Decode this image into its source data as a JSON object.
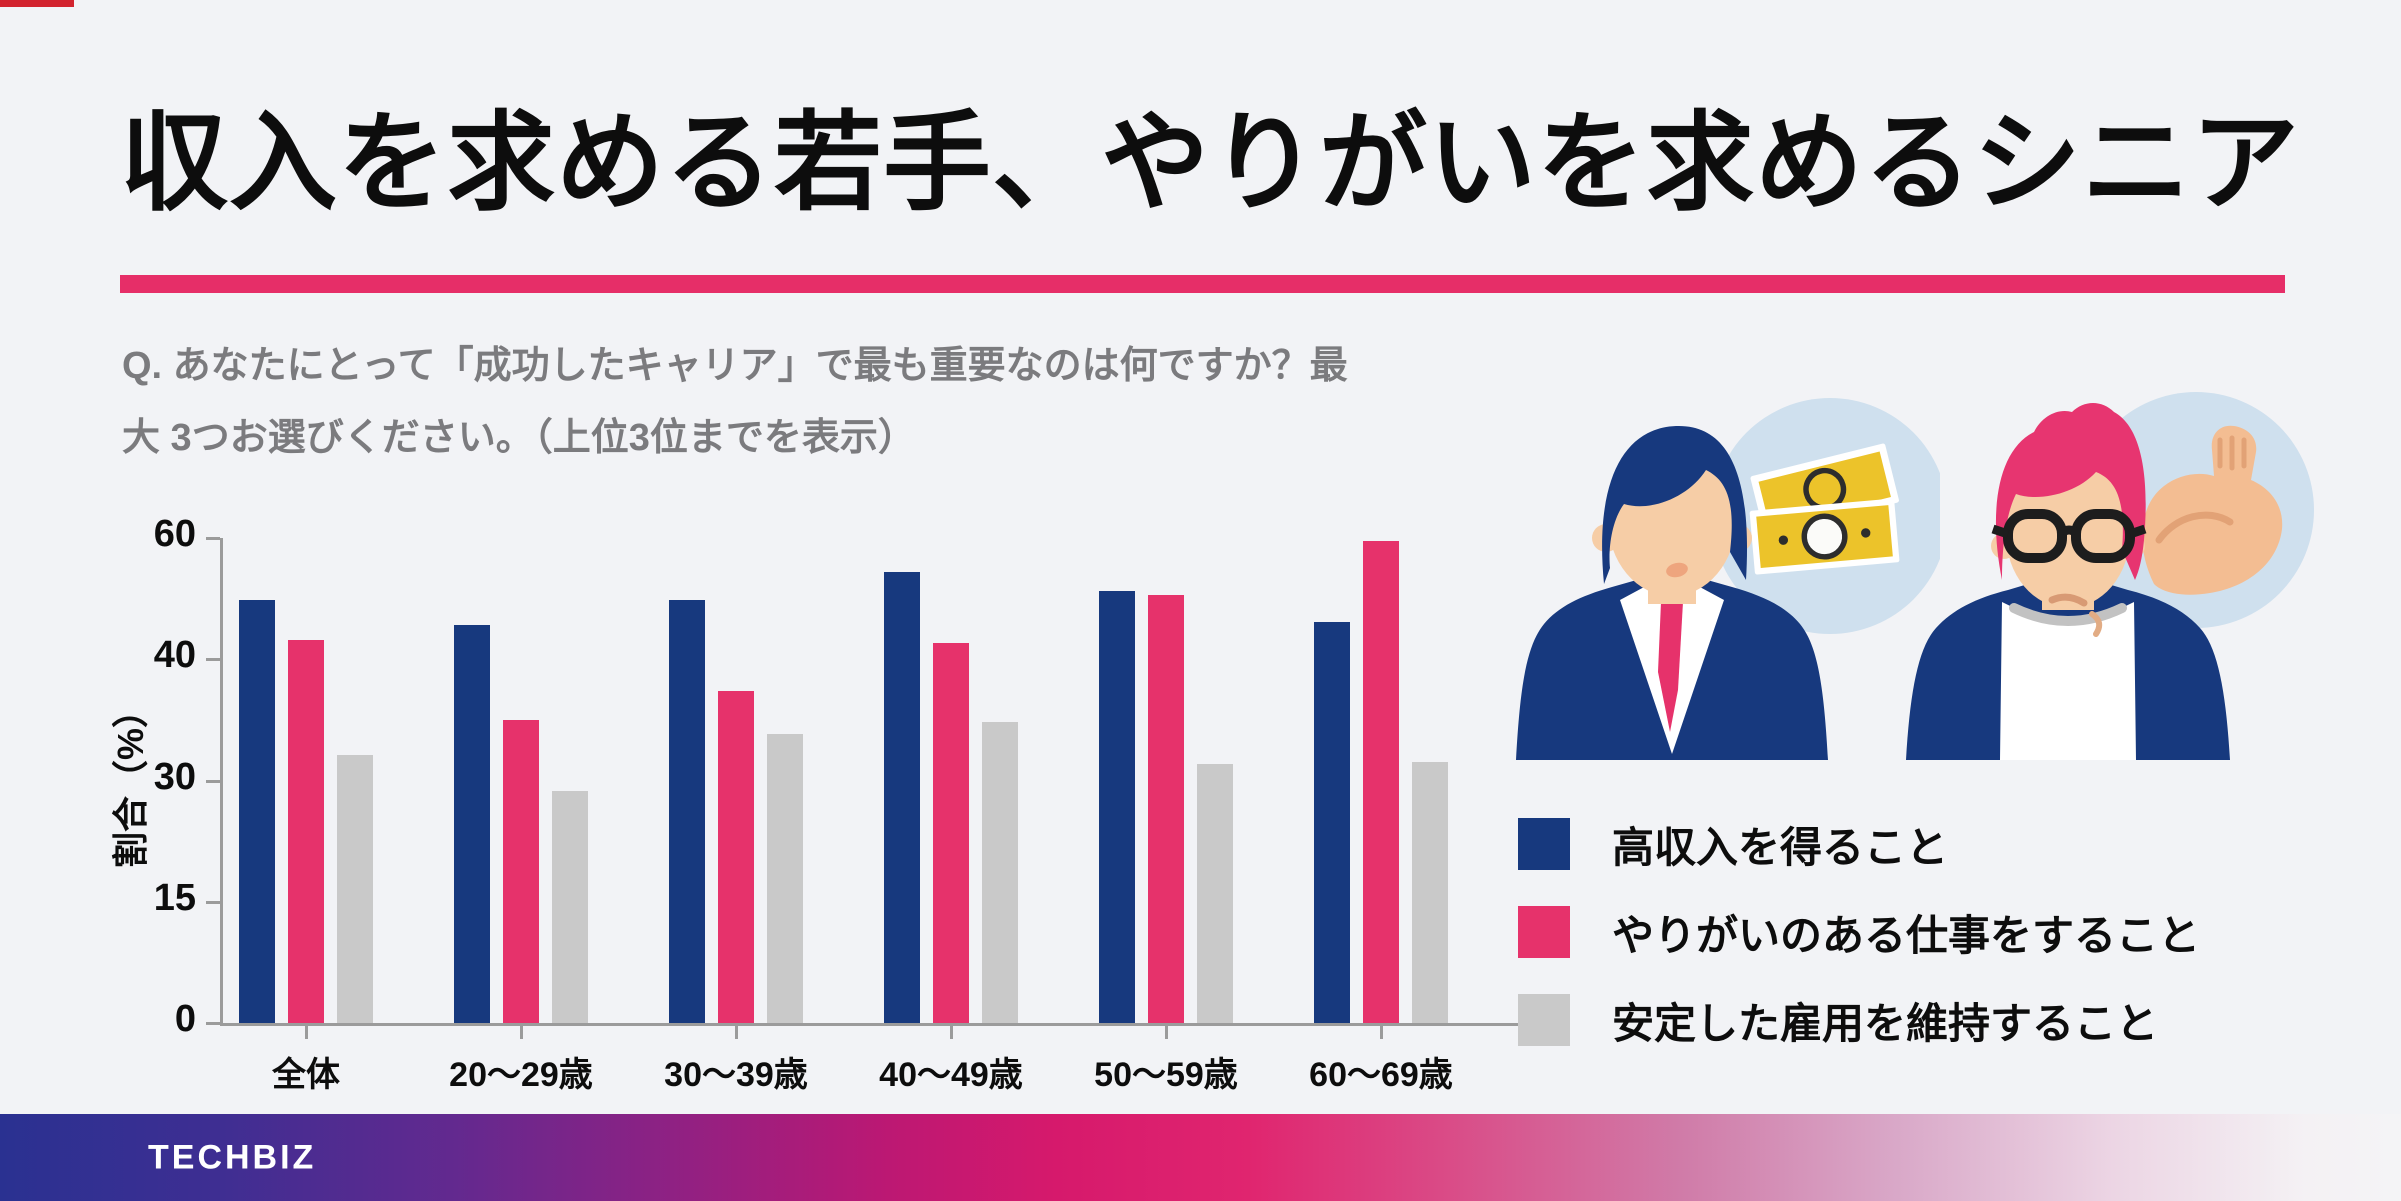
{
  "page": {
    "background": "#F2F3F6"
  },
  "header": {
    "title": "収入を求める若手、やりがいを求めるシニア",
    "divider_color": "#E62E68",
    "question_line1": "Q. あなたにとって「成功したキャリア」で最も重要なのは何ですか？最",
    "question_line2": "大 3つお選びください。（上位3位までを表示）"
  },
  "chart_data": {
    "type": "bar",
    "categories": [
      "全体",
      "20〜29歳",
      "30〜39歳",
      "40〜49歳",
      "50〜59歳",
      "60〜69歳"
    ],
    "series": [
      {
        "name": "高収入を得ること",
        "color": "#17397E",
        "values": [
          49.7,
          45.6,
          49.8,
          54.4,
          51.3,
          46.1
        ]
      },
      {
        "name": "やりがいのある仕事をすること",
        "color": "#E6326B",
        "values": [
          43.2,
          35.0,
          37.4,
          42.6,
          50.6,
          59.5
        ]
      },
      {
        "name": "安定した雇用を維持すること",
        "color": "#C9C9C9",
        "values": [
          32.1,
          28.7,
          33.8,
          34.8,
          31.4,
          31.5
        ]
      }
    ],
    "xlabel": "",
    "ylabel": "割合（%）",
    "y_ticks": [
      0,
      15,
      30,
      40,
      60
    ],
    "ylim": [
      0,
      60
    ],
    "grid": false,
    "legend_position": "right"
  },
  "illustrations": {
    "left": "young-businessman-with-money",
    "right": "senior-man-with-flexed-arm"
  },
  "footer": {
    "brand": "TECHBIZ"
  }
}
